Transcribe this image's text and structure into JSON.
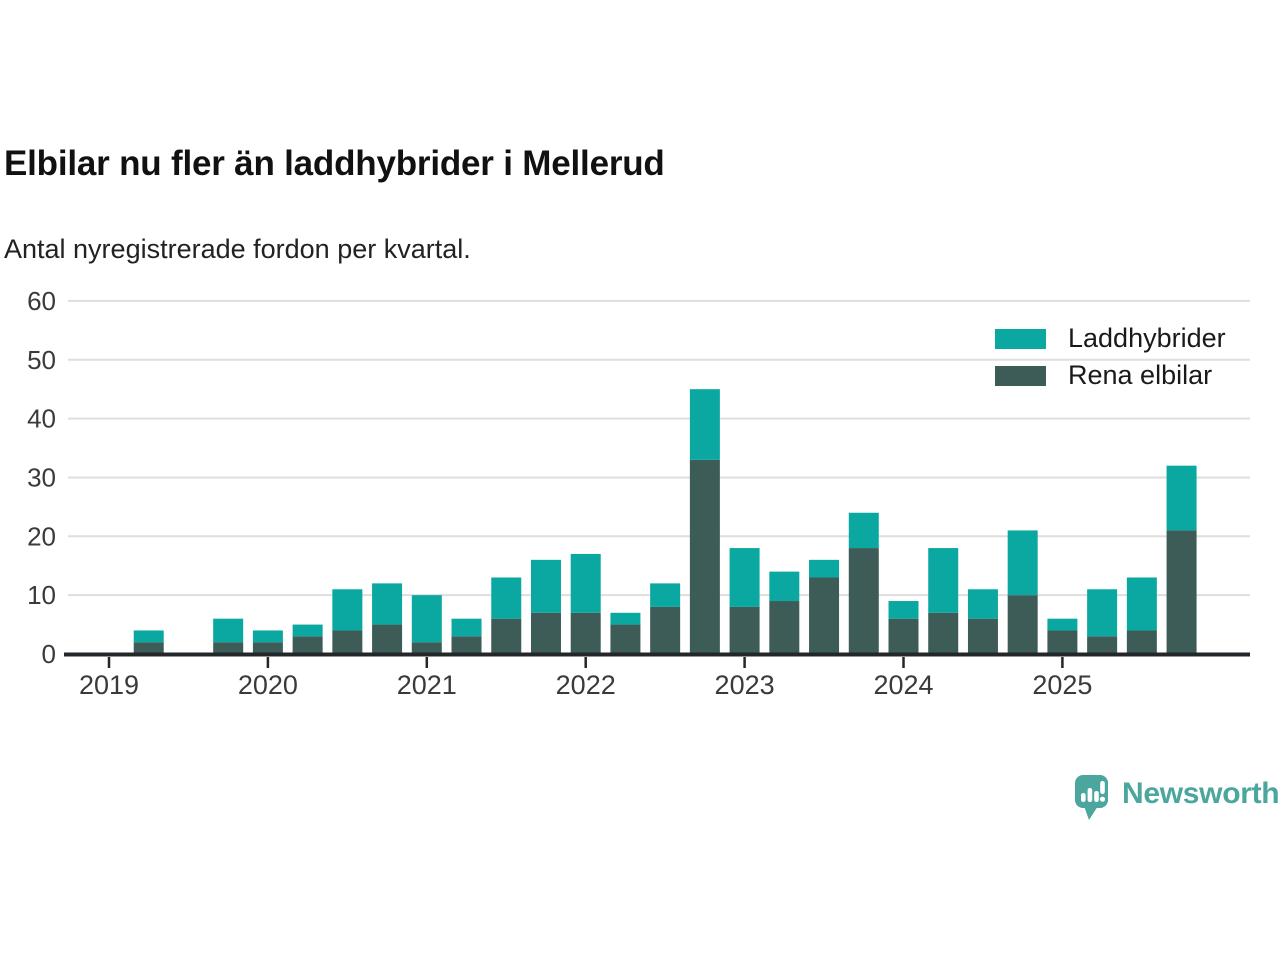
{
  "chart_data": {
    "type": "bar",
    "stacked": true,
    "title": "Elbilar nu fler än laddhybrider i Mellerud",
    "subtitle": "Antal nyregistrerade fordon per kvartal.",
    "categories": [
      "2019K1",
      "2019K2",
      "2019K3",
      "2019K4",
      "2020K1",
      "2020K2",
      "2020K3",
      "2020K4",
      "2021K1",
      "2021K2",
      "2021K3",
      "2021K4",
      "2022K1",
      "2022K2",
      "2022K3",
      "2022K4",
      "2023K1",
      "2023K2",
      "2023K3",
      "2023K4",
      "2024K1",
      "2024K2",
      "2024K3",
      "2024K4",
      "2025K1",
      "2025K2",
      "2025K3",
      "2025K4"
    ],
    "x_axis": {
      "tick_labels": [
        "2019",
        "2020",
        "2021",
        "2022",
        "2023",
        "2024",
        "2025"
      ],
      "quarters_per_year": 4
    },
    "y_axis": {
      "min": 0,
      "max": 60,
      "ticks": [
        0,
        10,
        20,
        30,
        40,
        50,
        60
      ]
    },
    "grid": true,
    "legend": {
      "position": "top-right"
    },
    "series": [
      {
        "name": "Laddhybrider",
        "color": "#0aa8a0",
        "stack_position": "top",
        "values": [
          0,
          2,
          0,
          4,
          2,
          2,
          7,
          7,
          8,
          3,
          7,
          9,
          10,
          2,
          4,
          12,
          10,
          5,
          3,
          6,
          3,
          11,
          5,
          11,
          2,
          8,
          9,
          11
        ]
      },
      {
        "name": "Rena elbilar",
        "color": "#3d5c57",
        "stack_position": "bottom",
        "values": [
          0,
          2,
          0,
          2,
          2,
          3,
          4,
          5,
          2,
          3,
          6,
          7,
          7,
          5,
          8,
          33,
          8,
          9,
          13,
          18,
          6,
          7,
          6,
          10,
          4,
          3,
          4,
          21
        ]
      }
    ],
    "totals": [
      0,
      4,
      0,
      6,
      4,
      5,
      11,
      12,
      10,
      6,
      13,
      16,
      17,
      7,
      12,
      45,
      18,
      14,
      16,
      24,
      9,
      18,
      11,
      21,
      6,
      11,
      13,
      32
    ]
  },
  "style": {
    "grid_color": "#dedede",
    "axis_color": "#24272a",
    "tick_label_color": "#3a3a3a"
  },
  "brand": {
    "name": "Newsworthy",
    "color": "#4ba69d",
    "icon": "newsworthy-bubble-chart-icon"
  }
}
